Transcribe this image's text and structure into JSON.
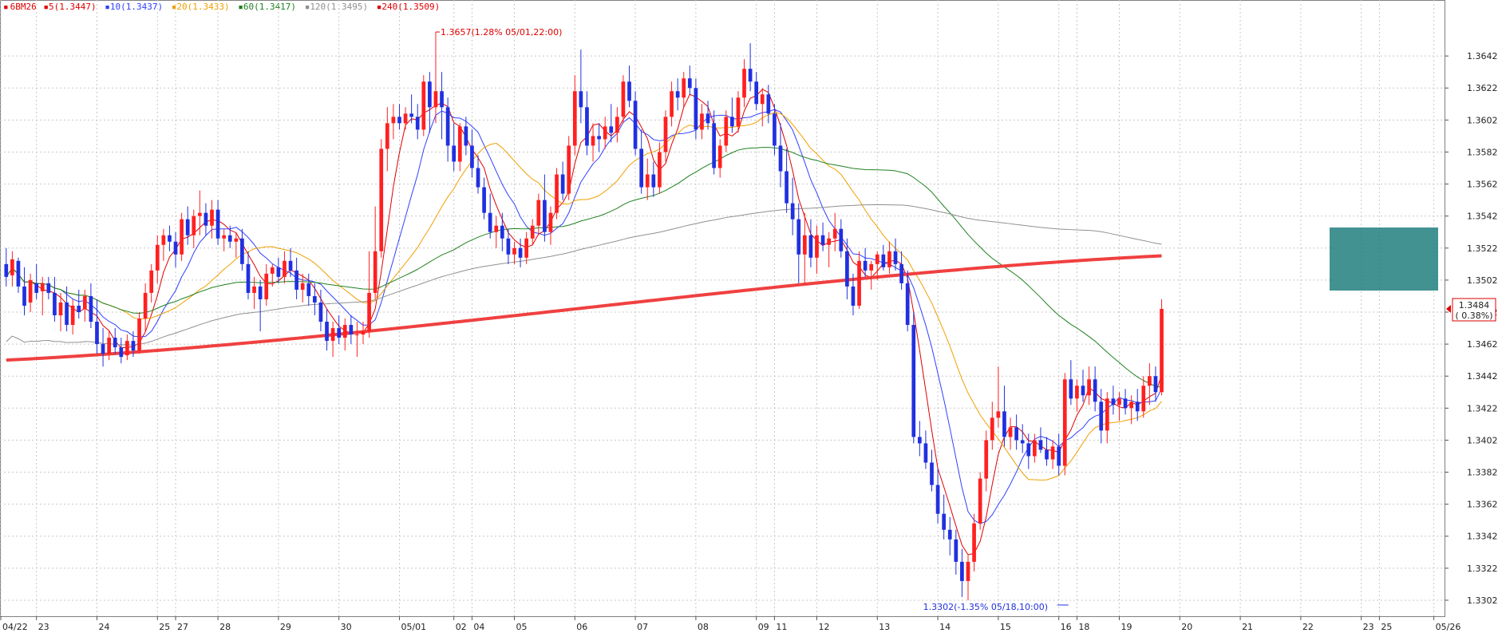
{
  "symbol": "6BM26",
  "legend": [
    {
      "label": "6BM26",
      "color": "#e00000"
    },
    {
      "label": "5(1.3447)",
      "color": "#e00000"
    },
    {
      "label": "10(1.3437)",
      "color": "#3040ff"
    },
    {
      "label": "20(1.3433)",
      "color": "#f0a000"
    },
    {
      "label": "60(1.3417)",
      "color": "#208020"
    },
    {
      "label": "120(1.3495)",
      "color": "#909090"
    },
    {
      "label": "240(1.3509)",
      "color": "#e00000"
    }
  ],
  "annotations": {
    "high": "1.3657(1.28% 05/01,22:00)",
    "low": "1.3302(-1.35% 05/18,10:00)",
    "last_price": "1.3484",
    "last_change": "( 0.38%)"
  },
  "chart_data": {
    "type": "candlestick",
    "title": "",
    "ylim": [
      1.3292,
      1.3668
    ],
    "y_ticks": [
      "1.3642",
      "1.3622",
      "1.3602",
      "1.3582",
      "1.3562",
      "1.3542",
      "1.3522",
      "1.3502",
      "1.3482",
      "1.3462",
      "1.3442",
      "1.3422",
      "1.3402",
      "1.3382",
      "1.3362",
      "1.3342",
      "1.3322",
      "1.3302"
    ],
    "x_ticks": [
      "04/22",
      "23",
      "24",
      "25",
      "27",
      "28",
      "29",
      "30",
      "05/01",
      "02",
      "04",
      "05",
      "06",
      "07",
      "08",
      "09",
      "11",
      "12",
      "13",
      "14",
      "15",
      "16",
      "18",
      "19",
      "20",
      "21",
      "22",
      "23",
      "25",
      "05/26"
    ],
    "x_tick_index": [
      0,
      5,
      15,
      25,
      28,
      35,
      45,
      55,
      65,
      74,
      77,
      84,
      94,
      104,
      114,
      124,
      127,
      134,
      144,
      154,
      164,
      174,
      177,
      184,
      194,
      204,
      214,
      224,
      227,
      236
    ],
    "colors": {
      "up": "#ff2020",
      "down": "#2030e0",
      "ma5": "#e00000",
      "ma10": "#3040ff",
      "ma20": "#f0a000",
      "ma60": "#208020",
      "ma120": "#909090",
      "ma240": "#f04040"
    },
    "candles": [
      [
        1.3512,
        1.3522,
        1.3498,
        1.3504
      ],
      [
        1.3505,
        1.352,
        1.3498,
        1.3515
      ],
      [
        1.3514,
        1.3516,
        1.3494,
        1.3498
      ],
      [
        1.3498,
        1.351,
        1.348,
        1.3486
      ],
      [
        1.3488,
        1.3506,
        1.3482,
        1.3502
      ],
      [
        1.35,
        1.3512,
        1.349,
        1.3494
      ],
      [
        1.3495,
        1.3504,
        1.348,
        1.35
      ],
      [
        1.35,
        1.3504,
        1.349,
        1.3494
      ],
      [
        1.3494,
        1.3504,
        1.3476,
        1.348
      ],
      [
        1.348,
        1.3494,
        1.347,
        1.3488
      ],
      [
        1.3488,
        1.3498,
        1.347,
        1.3474
      ],
      [
        1.3474,
        1.349,
        1.3468,
        1.3486
      ],
      [
        1.3486,
        1.3496,
        1.3478,
        1.3482
      ],
      [
        1.3484,
        1.3496,
        1.3476,
        1.3492
      ],
      [
        1.3492,
        1.35,
        1.3472,
        1.3476
      ],
      [
        1.3476,
        1.349,
        1.3456,
        1.3462
      ],
      [
        1.3462,
        1.3472,
        1.3448,
        1.3456
      ],
      [
        1.3456,
        1.347,
        1.3452,
        1.3466
      ],
      [
        1.3466,
        1.3472,
        1.3456,
        1.346
      ],
      [
        1.346,
        1.3466,
        1.345,
        1.3454
      ],
      [
        1.3455,
        1.3468,
        1.3452,
        1.3464
      ],
      [
        1.3464,
        1.347,
        1.3454,
        1.3458
      ],
      [
        1.3458,
        1.3482,
        1.3456,
        1.3478
      ],
      [
        1.3478,
        1.35,
        1.347,
        1.3494
      ],
      [
        1.3494,
        1.3512,
        1.3488,
        1.3508
      ],
      [
        1.3508,
        1.353,
        1.35,
        1.3524
      ],
      [
        1.3524,
        1.3534,
        1.3514,
        1.353
      ],
      [
        1.353,
        1.3536,
        1.352,
        1.3526
      ],
      [
        1.3526,
        1.3532,
        1.351,
        1.3518
      ],
      [
        1.3518,
        1.3544,
        1.3514,
        1.354
      ],
      [
        1.354,
        1.3548,
        1.3524,
        1.353
      ],
      [
        1.353,
        1.3546,
        1.3522,
        1.3542
      ],
      [
        1.3542,
        1.3558,
        1.353,
        1.3544
      ],
      [
        1.3544,
        1.355,
        1.353,
        1.3536
      ],
      [
        1.3536,
        1.3552,
        1.3528,
        1.3546
      ],
      [
        1.3546,
        1.3552,
        1.3524,
        1.3528
      ],
      [
        1.3528,
        1.3534,
        1.352,
        1.353
      ],
      [
        1.353,
        1.3536,
        1.3522,
        1.3526
      ],
      [
        1.3526,
        1.3532,
        1.3516,
        1.3528
      ],
      [
        1.3528,
        1.3534,
        1.3508,
        1.3512
      ],
      [
        1.3512,
        1.352,
        1.349,
        1.3494
      ],
      [
        1.3494,
        1.3504,
        1.3484,
        1.3498
      ],
      [
        1.3498,
        1.3502,
        1.347,
        1.349
      ],
      [
        1.349,
        1.3512,
        1.3486,
        1.3506
      ],
      [
        1.3506,
        1.3512,
        1.3498,
        1.351
      ],
      [
        1.351,
        1.3516,
        1.35,
        1.3504
      ],
      [
        1.3504,
        1.352,
        1.35,
        1.3514
      ],
      [
        1.3514,
        1.3522,
        1.3504,
        1.3508
      ],
      [
        1.3508,
        1.3516,
        1.349,
        1.3496
      ],
      [
        1.3496,
        1.3506,
        1.3488,
        1.35
      ],
      [
        1.35,
        1.3506,
        1.3486,
        1.3492
      ],
      [
        1.3492,
        1.35,
        1.348,
        1.3488
      ],
      [
        1.3488,
        1.3496,
        1.347,
        1.3476
      ],
      [
        1.3476,
        1.3484,
        1.3458,
        1.3464
      ],
      [
        1.3464,
        1.3476,
        1.3454,
        1.3472
      ],
      [
        1.3472,
        1.348,
        1.3462,
        1.3466
      ],
      [
        1.3466,
        1.3478,
        1.3458,
        1.3474
      ],
      [
        1.3474,
        1.348,
        1.3462,
        1.3468
      ],
      [
        1.3468,
        1.3476,
        1.3454,
        1.3468
      ],
      [
        1.3468,
        1.3476,
        1.3462,
        1.347
      ],
      [
        1.347,
        1.352,
        1.3466,
        1.3494
      ],
      [
        1.3494,
        1.3548,
        1.349,
        1.352
      ],
      [
        1.352,
        1.359,
        1.3516,
        1.3584
      ],
      [
        1.3584,
        1.361,
        1.357,
        1.36
      ],
      [
        1.36,
        1.3612,
        1.359,
        1.3604
      ],
      [
        1.3604,
        1.3612,
        1.3596,
        1.36
      ],
      [
        1.36,
        1.361,
        1.3596,
        1.3606
      ],
      [
        1.3606,
        1.3618,
        1.36,
        1.3604
      ],
      [
        1.3604,
        1.3612,
        1.359,
        1.3596
      ],
      [
        1.3596,
        1.363,
        1.3592,
        1.3626
      ],
      [
        1.3626,
        1.3632,
        1.3594,
        1.361
      ],
      [
        1.361,
        1.3657,
        1.36,
        1.362
      ],
      [
        1.362,
        1.3632,
        1.359,
        1.361
      ],
      [
        1.361,
        1.3616,
        1.3576,
        1.3586
      ],
      [
        1.3586,
        1.36,
        1.357,
        1.3576
      ],
      [
        1.3576,
        1.36,
        1.357,
        1.3598
      ],
      [
        1.3598,
        1.3604,
        1.358,
        1.3586
      ],
      [
        1.3586,
        1.3596,
        1.3566,
        1.3572
      ],
      [
        1.3572,
        1.358,
        1.3556,
        1.356
      ],
      [
        1.356,
        1.3566,
        1.354,
        1.3544
      ],
      [
        1.3544,
        1.3556,
        1.3528,
        1.3532
      ],
      [
        1.3532,
        1.3542,
        1.3522,
        1.3536
      ],
      [
        1.3536,
        1.3544,
        1.352,
        1.3528
      ],
      [
        1.3528,
        1.3534,
        1.3512,
        1.3518
      ],
      [
        1.3518,
        1.3526,
        1.3512,
        1.3522
      ],
      [
        1.3522,
        1.3528,
        1.351,
        1.3516
      ],
      [
        1.3516,
        1.3532,
        1.3512,
        1.3528
      ],
      [
        1.3528,
        1.354,
        1.3524,
        1.3536
      ],
      [
        1.3536,
        1.3556,
        1.353,
        1.3552
      ],
      [
        1.3552,
        1.3568,
        1.3526,
        1.3532
      ],
      [
        1.3532,
        1.3548,
        1.3524,
        1.3544
      ],
      [
        1.3544,
        1.3572,
        1.354,
        1.3568
      ],
      [
        1.3568,
        1.3576,
        1.3552,
        1.3556
      ],
      [
        1.3556,
        1.3592,
        1.3552,
        1.3586
      ],
      [
        1.3586,
        1.363,
        1.358,
        1.362
      ],
      [
        1.362,
        1.3646,
        1.36,
        1.361
      ],
      [
        1.361,
        1.362,
        1.358,
        1.3586
      ],
      [
        1.3586,
        1.36,
        1.3576,
        1.3592
      ],
      [
        1.3592,
        1.36,
        1.3582,
        1.359
      ],
      [
        1.359,
        1.3604,
        1.3584,
        1.3598
      ],
      [
        1.3598,
        1.3612,
        1.3588,
        1.3594
      ],
      [
        1.3594,
        1.361,
        1.3588,
        1.3604
      ],
      [
        1.3604,
        1.363,
        1.36,
        1.3626
      ],
      [
        1.3626,
        1.3636,
        1.361,
        1.3614
      ],
      [
        1.3614,
        1.362,
        1.358,
        1.3584
      ],
      [
        1.3584,
        1.3596,
        1.3556,
        1.356
      ],
      [
        1.356,
        1.3578,
        1.3552,
        1.3568
      ],
      [
        1.3568,
        1.3576,
        1.3554,
        1.356
      ],
      [
        1.356,
        1.3588,
        1.3556,
        1.3582
      ],
      [
        1.3582,
        1.3608,
        1.3576,
        1.3604
      ],
      [
        1.3604,
        1.3626,
        1.3598,
        1.362
      ],
      [
        1.362,
        1.3628,
        1.3608,
        1.3616
      ],
      [
        1.3616,
        1.3632,
        1.361,
        1.3628
      ],
      [
        1.3628,
        1.3636,
        1.3618,
        1.3622
      ],
      [
        1.3622,
        1.3628,
        1.359,
        1.3596
      ],
      [
        1.3596,
        1.3612,
        1.359,
        1.3606
      ],
      [
        1.3606,
        1.3614,
        1.3596,
        1.36
      ],
      [
        1.36,
        1.3608,
        1.3568,
        1.3572
      ],
      [
        1.3572,
        1.359,
        1.3566,
        1.3586
      ],
      [
        1.3586,
        1.3608,
        1.3582,
        1.3604
      ],
      [
        1.3604,
        1.3616,
        1.3594,
        1.3598
      ],
      [
        1.3598,
        1.362,
        1.3594,
        1.3616
      ],
      [
        1.3616,
        1.364,
        1.361,
        1.3634
      ],
      [
        1.3634,
        1.365,
        1.362,
        1.3626
      ],
      [
        1.3626,
        1.3632,
        1.3608,
        1.3612
      ],
      [
        1.3612,
        1.3622,
        1.3598,
        1.3618
      ],
      [
        1.3618,
        1.3624,
        1.36,
        1.3606
      ],
      [
        1.3606,
        1.3612,
        1.358,
        1.3586
      ],
      [
        1.3586,
        1.36,
        1.356,
        1.357
      ],
      [
        1.357,
        1.3584,
        1.3544,
        1.355
      ],
      [
        1.355,
        1.3566,
        1.353,
        1.354
      ],
      [
        1.354,
        1.355,
        1.35,
        1.3518
      ],
      [
        1.3518,
        1.3544,
        1.35,
        1.353
      ],
      [
        1.353,
        1.354,
        1.351,
        1.3516
      ],
      [
        1.3516,
        1.3536,
        1.3506,
        1.353
      ],
      [
        1.353,
        1.3538,
        1.352,
        1.3524
      ],
      [
        1.3524,
        1.3532,
        1.351,
        1.3528
      ],
      [
        1.3528,
        1.3544,
        1.352,
        1.3534
      ],
      [
        1.3534,
        1.354,
        1.3516,
        1.352
      ],
      [
        1.352,
        1.3528,
        1.349,
        1.3498
      ],
      [
        1.3498,
        1.3506,
        1.348,
        1.3486
      ],
      [
        1.3486,
        1.352,
        1.3484,
        1.3514
      ],
      [
        1.3514,
        1.3522,
        1.3504,
        1.3508
      ],
      [
        1.3508,
        1.3514,
        1.3496,
        1.3512
      ],
      [
        1.3512,
        1.352,
        1.3502,
        1.3518
      ],
      [
        1.3518,
        1.3524,
        1.3508,
        1.351
      ],
      [
        1.351,
        1.3526,
        1.3506,
        1.352
      ],
      [
        1.352,
        1.3528,
        1.3508,
        1.3512
      ],
      [
        1.3512,
        1.352,
        1.3496,
        1.35
      ],
      [
        1.35,
        1.3508,
        1.347,
        1.3474
      ],
      [
        1.3474,
        1.3482,
        1.34,
        1.3404
      ],
      [
        1.3404,
        1.3414,
        1.3392,
        1.34
      ],
      [
        1.34,
        1.3408,
        1.3384,
        1.3388
      ],
      [
        1.3388,
        1.3396,
        1.337,
        1.3374
      ],
      [
        1.3374,
        1.3384,
        1.335,
        1.3356
      ],
      [
        1.3356,
        1.3368,
        1.334,
        1.3346
      ],
      [
        1.3346,
        1.3354,
        1.333,
        1.334
      ],
      [
        1.334,
        1.3346,
        1.3318,
        1.3326
      ],
      [
        1.3326,
        1.3334,
        1.3304,
        1.3314
      ],
      [
        1.3314,
        1.333,
        1.3302,
        1.3326
      ],
      [
        1.3326,
        1.3356,
        1.332,
        1.335
      ],
      [
        1.335,
        1.3382,
        1.3346,
        1.3378
      ],
      [
        1.3378,
        1.3408,
        1.337,
        1.3402
      ],
      [
        1.3402,
        1.3426,
        1.3396,
        1.3416
      ],
      [
        1.3416,
        1.3448,
        1.341,
        1.342
      ],
      [
        1.342,
        1.3436,
        1.3398,
        1.3404
      ],
      [
        1.3404,
        1.3416,
        1.3396,
        1.341
      ],
      [
        1.341,
        1.3418,
        1.3396,
        1.3402
      ],
      [
        1.3402,
        1.3412,
        1.3394,
        1.34
      ],
      [
        1.34,
        1.3406,
        1.3384,
        1.3392
      ],
      [
        1.3392,
        1.3406,
        1.3388,
        1.3402
      ],
      [
        1.3402,
        1.341,
        1.3394,
        1.3396
      ],
      [
        1.3396,
        1.3404,
        1.3386,
        1.339
      ],
      [
        1.339,
        1.3402,
        1.3384,
        1.3398
      ],
      [
        1.3398,
        1.3406,
        1.338,
        1.3386
      ],
      [
        1.3386,
        1.3444,
        1.338,
        1.344
      ],
      [
        1.344,
        1.3452,
        1.3424,
        1.3428
      ],
      [
        1.3428,
        1.344,
        1.342,
        1.3436
      ],
      [
        1.3436,
        1.3446,
        1.3426,
        1.343
      ],
      [
        1.343,
        1.3448,
        1.3424,
        1.344
      ],
      [
        1.344,
        1.3448,
        1.342,
        1.3426
      ],
      [
        1.3426,
        1.3434,
        1.34,
        1.3408
      ],
      [
        1.3408,
        1.3432,
        1.34,
        1.3428
      ],
      [
        1.3428,
        1.3436,
        1.3418,
        1.3424
      ],
      [
        1.3424,
        1.3432,
        1.3414,
        1.3428
      ],
      [
        1.3428,
        1.3434,
        1.3418,
        1.3422
      ],
      [
        1.3422,
        1.343,
        1.3412,
        1.3426
      ],
      [
        1.3426,
        1.3434,
        1.3414,
        1.342
      ],
      [
        1.342,
        1.3442,
        1.3416,
        1.3436
      ],
      [
        1.3436,
        1.345,
        1.3424,
        1.3442
      ],
      [
        1.3442,
        1.3448,
        1.3426,
        1.3432
      ],
      [
        1.3432,
        1.349,
        1.343,
        1.3484
      ]
    ],
    "ma_series": [
      {
        "key": "ma5",
        "width": 1
      },
      {
        "key": "ma10",
        "width": 1
      },
      {
        "key": "ma20",
        "width": 1
      },
      {
        "key": "ma60",
        "width": 1
      },
      {
        "key": "ma120",
        "width": 1
      },
      {
        "key": "ma240",
        "width": 4
      }
    ]
  }
}
